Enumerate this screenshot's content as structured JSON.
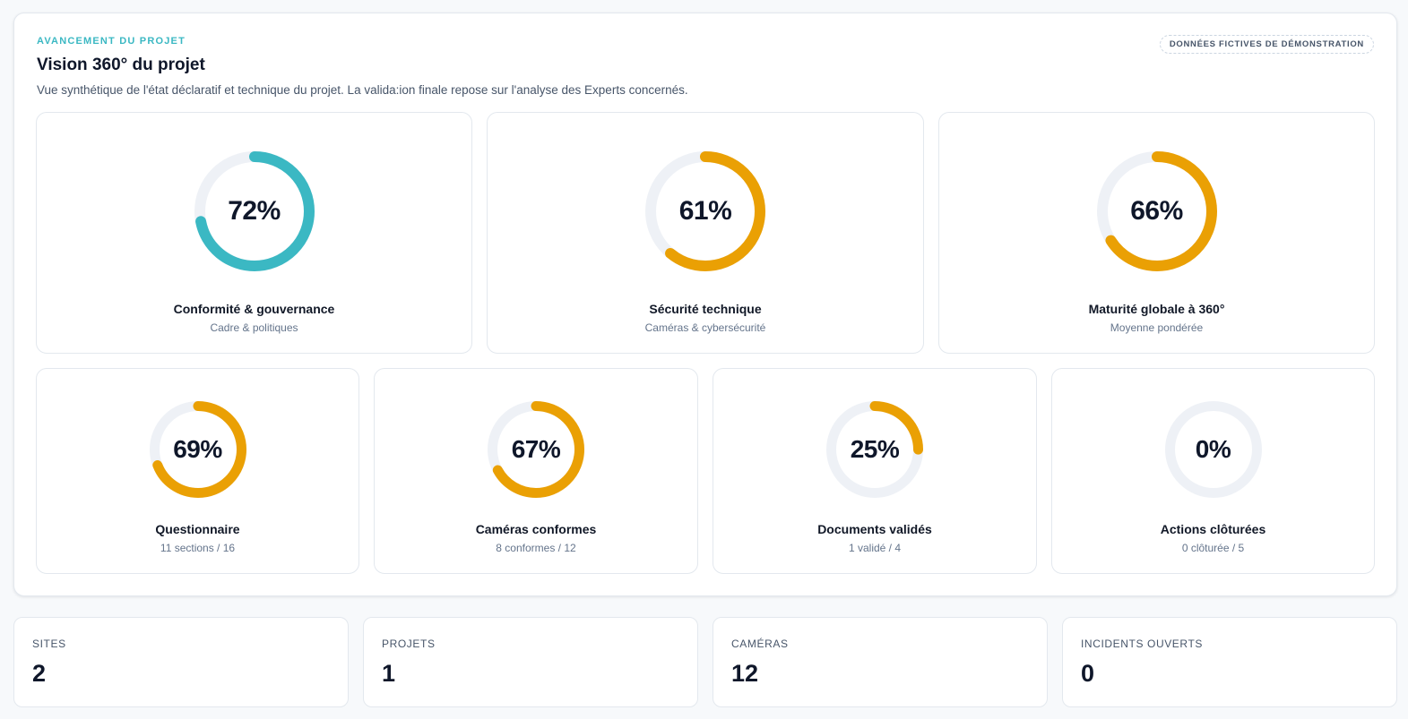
{
  "header": {
    "eyebrow": "AVANCEMENT DU PROJET",
    "title": "Vision 360° du projet",
    "subtitle": "Vue synthétique de l'état déclaratif et technique du projet. La valida:ion finale repose sur l'analyse des Experts concernés.",
    "badge": "DONNÉES FICTIVES DE DÉMONSTRATION"
  },
  "colors": {
    "teal": "#3bb8c3",
    "orange": "#eaa004",
    "track": "#eef1f6"
  },
  "main_cards": [
    {
      "value": 72,
      "value_label": "72%",
      "label": "Conformité & gouvernance",
      "sub": "Cadre & politiques",
      "color": "#3bb8c3"
    },
    {
      "value": 61,
      "value_label": "61%",
      "label": "Sécurité technique",
      "sub": "Caméras & cybersécurité",
      "color": "#eaa004"
    },
    {
      "value": 66,
      "value_label": "66%",
      "label": "Maturité globale à 360°",
      "sub": "Moyenne pondérée",
      "color": "#eaa004"
    }
  ],
  "small_cards": [
    {
      "value": 69,
      "value_label": "69%",
      "label": "Questionnaire",
      "sub": "11 sections / 16",
      "color": "#eaa004"
    },
    {
      "value": 67,
      "value_label": "67%",
      "label": "Caméras conformes",
      "sub": "8 conformes / 12",
      "color": "#eaa004"
    },
    {
      "value": 25,
      "value_label": "25%",
      "label": "Documents validés",
      "sub": "1 validé / 4",
      "color": "#eaa004"
    },
    {
      "value": 0,
      "value_label": "0%",
      "label": "Actions clôturées",
      "sub": "0 clôturée / 5",
      "color": "#eaa004"
    }
  ],
  "stats": [
    {
      "label": "SITES",
      "value": "2"
    },
    {
      "label": "PROJETS",
      "value": "1"
    },
    {
      "label": "CAMÉRAS",
      "value": "12"
    },
    {
      "label": "INCIDENTS OUVERTS",
      "value": "0"
    }
  ]
}
